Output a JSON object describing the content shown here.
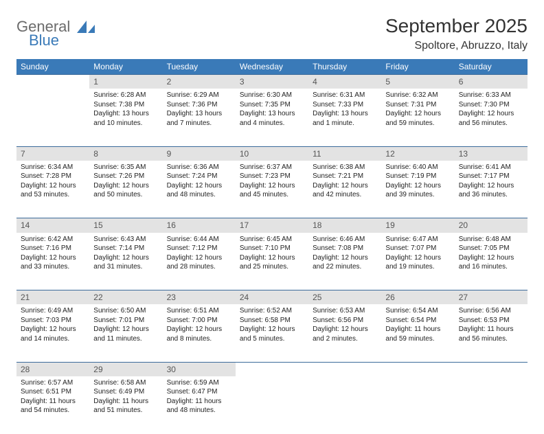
{
  "logo": {
    "word1": "General",
    "word2": "Blue",
    "color1": "#6b6b6b",
    "color2": "#3a7ab8"
  },
  "title": "September 2025",
  "location": "Spoltore, Abruzzo, Italy",
  "header_bg": "#3a7ab8",
  "header_fg": "#ffffff",
  "daynum_bg": "#e3e3e3",
  "rule_color": "#3a6a9a",
  "weekdays": [
    "Sunday",
    "Monday",
    "Tuesday",
    "Wednesday",
    "Thursday",
    "Friday",
    "Saturday"
  ],
  "weeks": [
    [
      null,
      {
        "n": "1",
        "sr": "Sunrise: 6:28 AM",
        "ss": "Sunset: 7:38 PM",
        "dl": "Daylight: 13 hours and 10 minutes."
      },
      {
        "n": "2",
        "sr": "Sunrise: 6:29 AM",
        "ss": "Sunset: 7:36 PM",
        "dl": "Daylight: 13 hours and 7 minutes."
      },
      {
        "n": "3",
        "sr": "Sunrise: 6:30 AM",
        "ss": "Sunset: 7:35 PM",
        "dl": "Daylight: 13 hours and 4 minutes."
      },
      {
        "n": "4",
        "sr": "Sunrise: 6:31 AM",
        "ss": "Sunset: 7:33 PM",
        "dl": "Daylight: 13 hours and 1 minute."
      },
      {
        "n": "5",
        "sr": "Sunrise: 6:32 AM",
        "ss": "Sunset: 7:31 PM",
        "dl": "Daylight: 12 hours and 59 minutes."
      },
      {
        "n": "6",
        "sr": "Sunrise: 6:33 AM",
        "ss": "Sunset: 7:30 PM",
        "dl": "Daylight: 12 hours and 56 minutes."
      }
    ],
    [
      {
        "n": "7",
        "sr": "Sunrise: 6:34 AM",
        "ss": "Sunset: 7:28 PM",
        "dl": "Daylight: 12 hours and 53 minutes."
      },
      {
        "n": "8",
        "sr": "Sunrise: 6:35 AM",
        "ss": "Sunset: 7:26 PM",
        "dl": "Daylight: 12 hours and 50 minutes."
      },
      {
        "n": "9",
        "sr": "Sunrise: 6:36 AM",
        "ss": "Sunset: 7:24 PM",
        "dl": "Daylight: 12 hours and 48 minutes."
      },
      {
        "n": "10",
        "sr": "Sunrise: 6:37 AM",
        "ss": "Sunset: 7:23 PM",
        "dl": "Daylight: 12 hours and 45 minutes."
      },
      {
        "n": "11",
        "sr": "Sunrise: 6:38 AM",
        "ss": "Sunset: 7:21 PM",
        "dl": "Daylight: 12 hours and 42 minutes."
      },
      {
        "n": "12",
        "sr": "Sunrise: 6:40 AM",
        "ss": "Sunset: 7:19 PM",
        "dl": "Daylight: 12 hours and 39 minutes."
      },
      {
        "n": "13",
        "sr": "Sunrise: 6:41 AM",
        "ss": "Sunset: 7:17 PM",
        "dl": "Daylight: 12 hours and 36 minutes."
      }
    ],
    [
      {
        "n": "14",
        "sr": "Sunrise: 6:42 AM",
        "ss": "Sunset: 7:16 PM",
        "dl": "Daylight: 12 hours and 33 minutes."
      },
      {
        "n": "15",
        "sr": "Sunrise: 6:43 AM",
        "ss": "Sunset: 7:14 PM",
        "dl": "Daylight: 12 hours and 31 minutes."
      },
      {
        "n": "16",
        "sr": "Sunrise: 6:44 AM",
        "ss": "Sunset: 7:12 PM",
        "dl": "Daylight: 12 hours and 28 minutes."
      },
      {
        "n": "17",
        "sr": "Sunrise: 6:45 AM",
        "ss": "Sunset: 7:10 PM",
        "dl": "Daylight: 12 hours and 25 minutes."
      },
      {
        "n": "18",
        "sr": "Sunrise: 6:46 AM",
        "ss": "Sunset: 7:08 PM",
        "dl": "Daylight: 12 hours and 22 minutes."
      },
      {
        "n": "19",
        "sr": "Sunrise: 6:47 AM",
        "ss": "Sunset: 7:07 PM",
        "dl": "Daylight: 12 hours and 19 minutes."
      },
      {
        "n": "20",
        "sr": "Sunrise: 6:48 AM",
        "ss": "Sunset: 7:05 PM",
        "dl": "Daylight: 12 hours and 16 minutes."
      }
    ],
    [
      {
        "n": "21",
        "sr": "Sunrise: 6:49 AM",
        "ss": "Sunset: 7:03 PM",
        "dl": "Daylight: 12 hours and 14 minutes."
      },
      {
        "n": "22",
        "sr": "Sunrise: 6:50 AM",
        "ss": "Sunset: 7:01 PM",
        "dl": "Daylight: 12 hours and 11 minutes."
      },
      {
        "n": "23",
        "sr": "Sunrise: 6:51 AM",
        "ss": "Sunset: 7:00 PM",
        "dl": "Daylight: 12 hours and 8 minutes."
      },
      {
        "n": "24",
        "sr": "Sunrise: 6:52 AM",
        "ss": "Sunset: 6:58 PM",
        "dl": "Daylight: 12 hours and 5 minutes."
      },
      {
        "n": "25",
        "sr": "Sunrise: 6:53 AM",
        "ss": "Sunset: 6:56 PM",
        "dl": "Daylight: 12 hours and 2 minutes."
      },
      {
        "n": "26",
        "sr": "Sunrise: 6:54 AM",
        "ss": "Sunset: 6:54 PM",
        "dl": "Daylight: 11 hours and 59 minutes."
      },
      {
        "n": "27",
        "sr": "Sunrise: 6:56 AM",
        "ss": "Sunset: 6:53 PM",
        "dl": "Daylight: 11 hours and 56 minutes."
      }
    ],
    [
      {
        "n": "28",
        "sr": "Sunrise: 6:57 AM",
        "ss": "Sunset: 6:51 PM",
        "dl": "Daylight: 11 hours and 54 minutes."
      },
      {
        "n": "29",
        "sr": "Sunrise: 6:58 AM",
        "ss": "Sunset: 6:49 PM",
        "dl": "Daylight: 11 hours and 51 minutes."
      },
      {
        "n": "30",
        "sr": "Sunrise: 6:59 AM",
        "ss": "Sunset: 6:47 PM",
        "dl": "Daylight: 11 hours and 48 minutes."
      },
      null,
      null,
      null,
      null
    ]
  ]
}
